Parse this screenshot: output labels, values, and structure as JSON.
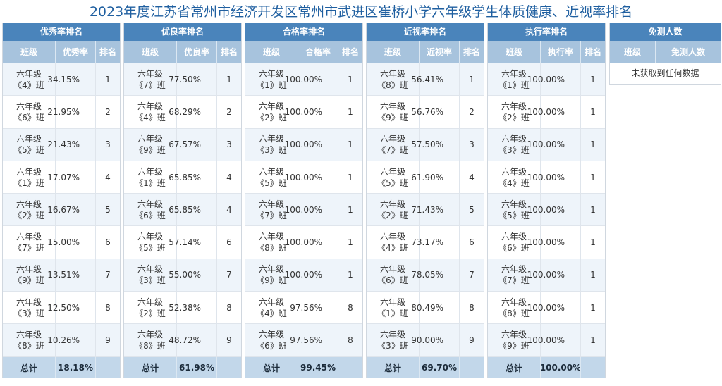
{
  "page_title": "2023年度江苏省常州市经济开发区常州市武进区崔桥小学六年级学生体质健康、近视率排名",
  "col_class": "班级",
  "col_rank": "排名",
  "total_label": "总计",
  "panels": [
    {
      "title": "优秀率排名",
      "value_header": "优秀率",
      "total_value": "18.18%",
      "rows": [
        {
          "class_line1": "六年级",
          "class_line2": "《4》班",
          "value": "34.15%",
          "rank": "1"
        },
        {
          "class_line1": "六年级",
          "class_line2": "《6》班",
          "value": "21.95%",
          "rank": "2"
        },
        {
          "class_line1": "六年级",
          "class_line2": "《5》班",
          "value": "21.43%",
          "rank": "3"
        },
        {
          "class_line1": "六年级",
          "class_line2": "《1》班",
          "value": "17.07%",
          "rank": "4"
        },
        {
          "class_line1": "六年级",
          "class_line2": "《2》班",
          "value": "16.67%",
          "rank": "5"
        },
        {
          "class_line1": "六年级",
          "class_line2": "《7》班",
          "value": "15.00%",
          "rank": "6"
        },
        {
          "class_line1": "六年级",
          "class_line2": "《9》班",
          "value": "13.51%",
          "rank": "7"
        },
        {
          "class_line1": "六年级",
          "class_line2": "《3》班",
          "value": "12.50%",
          "rank": "8"
        },
        {
          "class_line1": "六年级",
          "class_line2": "《8》班",
          "value": "10.26%",
          "rank": "9"
        }
      ]
    },
    {
      "title": "优良率排名",
      "value_header": "优良率",
      "total_value": "61.98%",
      "rows": [
        {
          "class_line1": "六年级",
          "class_line2": "《7》班",
          "value": "77.50%",
          "rank": "1"
        },
        {
          "class_line1": "六年级",
          "class_line2": "《4》班",
          "value": "68.29%",
          "rank": "2"
        },
        {
          "class_line1": "六年级",
          "class_line2": "《9》班",
          "value": "67.57%",
          "rank": "3"
        },
        {
          "class_line1": "六年级",
          "class_line2": "《1》班",
          "value": "65.85%",
          "rank": "4"
        },
        {
          "class_line1": "六年级",
          "class_line2": "《6》班",
          "value": "65.85%",
          "rank": "4"
        },
        {
          "class_line1": "六年级",
          "class_line2": "《5》班",
          "value": "57.14%",
          "rank": "6"
        },
        {
          "class_line1": "六年级",
          "class_line2": "《3》班",
          "value": "55.00%",
          "rank": "7"
        },
        {
          "class_line1": "六年级",
          "class_line2": "《2》班",
          "value": "52.38%",
          "rank": "8"
        },
        {
          "class_line1": "六年级",
          "class_line2": "《8》班",
          "value": "48.72%",
          "rank": "9"
        }
      ]
    },
    {
      "title": "合格率排名",
      "value_header": "合格率",
      "total_value": "99.45%",
      "rows": [
        {
          "class_line1": "六年级",
          "class_line2": "《1》班",
          "value": "100.00%",
          "rank": "1"
        },
        {
          "class_line1": "六年级",
          "class_line2": "《2》班",
          "value": "100.00%",
          "rank": "1"
        },
        {
          "class_line1": "六年级",
          "class_line2": "《3》班",
          "value": "100.00%",
          "rank": "1"
        },
        {
          "class_line1": "六年级",
          "class_line2": "《5》班",
          "value": "100.00%",
          "rank": "1"
        },
        {
          "class_line1": "六年级",
          "class_line2": "《7》班",
          "value": "100.00%",
          "rank": "1"
        },
        {
          "class_line1": "六年级",
          "class_line2": "《8》班",
          "value": "100.00%",
          "rank": "1"
        },
        {
          "class_line1": "六年级",
          "class_line2": "《9》班",
          "value": "100.00%",
          "rank": "1"
        },
        {
          "class_line1": "六年级",
          "class_line2": "《4》班",
          "value": "97.56%",
          "rank": "8"
        },
        {
          "class_line1": "六年级",
          "class_line2": "《6》班",
          "value": "97.56%",
          "rank": "8"
        }
      ]
    },
    {
      "title": "近视率排名",
      "value_header": "近视率",
      "total_value": "69.70%",
      "rows": [
        {
          "class_line1": "六年级",
          "class_line2": "《8》班",
          "value": "56.41%",
          "rank": "1"
        },
        {
          "class_line1": "六年级",
          "class_line2": "《9》班",
          "value": "56.76%",
          "rank": "2"
        },
        {
          "class_line1": "六年级",
          "class_line2": "《7》班",
          "value": "57.50%",
          "rank": "3"
        },
        {
          "class_line1": "六年级",
          "class_line2": "《5》班",
          "value": "61.90%",
          "rank": "4"
        },
        {
          "class_line1": "六年级",
          "class_line2": "《2》班",
          "value": "71.43%",
          "rank": "5"
        },
        {
          "class_line1": "六年级",
          "class_line2": "《4》班",
          "value": "73.17%",
          "rank": "6"
        },
        {
          "class_line1": "六年级",
          "class_line2": "《6》班",
          "value": "78.05%",
          "rank": "7"
        },
        {
          "class_line1": "六年级",
          "class_line2": "《1》班",
          "value": "80.49%",
          "rank": "8"
        },
        {
          "class_line1": "六年级",
          "class_line2": "《3》班",
          "value": "90.00%",
          "rank": "9"
        }
      ]
    },
    {
      "title": "执行率排名",
      "value_header": "执行率",
      "total_value": "100.00%",
      "rows": [
        {
          "class_line1": "六年级",
          "class_line2": "《1》班",
          "value": "100.00%",
          "rank": "1"
        },
        {
          "class_line1": "六年级",
          "class_line2": "《2》班",
          "value": "100.00%",
          "rank": "1"
        },
        {
          "class_line1": "六年级",
          "class_line2": "《3》班",
          "value": "100.00%",
          "rank": "1"
        },
        {
          "class_line1": "六年级",
          "class_line2": "《4》班",
          "value": "100.00%",
          "rank": "1"
        },
        {
          "class_line1": "六年级",
          "class_line2": "《5》班",
          "value": "100.00%",
          "rank": "1"
        },
        {
          "class_line1": "六年级",
          "class_line2": "《6》班",
          "value": "100.00%",
          "rank": "1"
        },
        {
          "class_line1": "六年级",
          "class_line2": "《7》班",
          "value": "100.00%",
          "rank": "1"
        },
        {
          "class_line1": "六年级",
          "class_line2": "《8》班",
          "value": "100.00%",
          "rank": "1"
        },
        {
          "class_line1": "六年级",
          "class_line2": "《9》班",
          "value": "100.00%",
          "rank": "1"
        }
      ]
    }
  ],
  "exempt_panel": {
    "title": "免测人数",
    "col_class": "班级",
    "col_count": "免测人数",
    "empty_message": "未获取到任何数据"
  },
  "colors": {
    "title_text": "#1f5fa0",
    "panel_header": "#4a84bb",
    "column_header": "#a7c3dd",
    "row_alt": "#eef4fa",
    "total_row": "#c2d7ea"
  }
}
